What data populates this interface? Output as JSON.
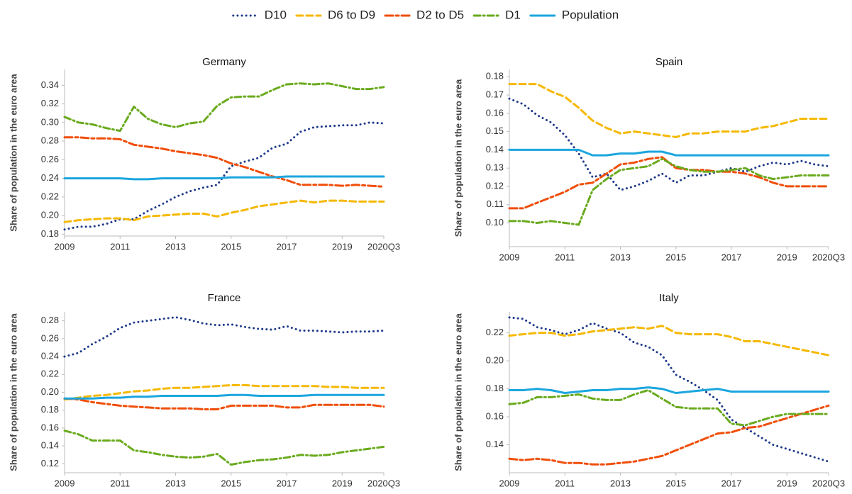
{
  "chart_data": [
    {
      "type": "line",
      "title": "Germany",
      "y_label": "Share of population in the euro area",
      "legend": "top",
      "categories": [
        "2009",
        null,
        null,
        null,
        "2011",
        null,
        null,
        null,
        "2013",
        null,
        null,
        null,
        "2015",
        null,
        null,
        null,
        "2017",
        null,
        null,
        null,
        "2019",
        null,
        null,
        "2020Q3"
      ],
      "ylim": [
        0.178,
        0.357
      ],
      "yticks": [
        0.18,
        {
          "value": 0.2,
          "label": "0.20"
        },
        0.22,
        0.24,
        0.26,
        0.28,
        {
          "value": 0.3,
          "label": "0.30"
        },
        0.32,
        0.34
      ],
      "series": [
        {
          "name": "D10",
          "color": "#1f3a8a",
          "linestyle": "dotted",
          "values": [
            0.185,
            0.188,
            0.188,
            0.191,
            0.196,
            0.196,
            0.205,
            0.212,
            0.22,
            0.226,
            0.23,
            0.233,
            0.253,
            0.258,
            0.262,
            0.273,
            0.277,
            0.29,
            0.295,
            0.296,
            0.297,
            0.297,
            0.3,
            0.299
          ]
        },
        {
          "name": "D6 to D9",
          "color": "#f5b800",
          "linestyle": "dashed",
          "values": [
            0.193,
            0.195,
            0.196,
            0.197,
            0.197,
            0.195,
            0.199,
            0.2,
            0.201,
            0.202,
            0.202,
            0.199,
            0.203,
            0.206,
            0.21,
            0.212,
            0.214,
            0.216,
            0.214,
            0.216,
            0.216,
            0.215,
            0.215,
            0.215
          ]
        },
        {
          "name": "D2 to D5",
          "color": "#f04e0a",
          "linestyle": "longdash",
          "values": [
            0.284,
            0.284,
            0.283,
            0.283,
            0.282,
            0.276,
            0.274,
            0.272,
            0.269,
            0.267,
            0.265,
            0.262,
            0.256,
            0.252,
            0.247,
            0.242,
            0.238,
            0.233,
            0.233,
            0.233,
            0.232,
            0.233,
            0.232,
            0.231
          ]
        },
        {
          "name": "D1",
          "color": "#6aaa1e",
          "linestyle": "dashdot",
          "values": [
            0.306,
            0.3,
            0.298,
            0.294,
            0.291,
            0.317,
            0.304,
            0.298,
            0.295,
            0.299,
            0.301,
            0.318,
            0.327,
            0.328,
            0.328,
            0.335,
            0.341,
            0.342,
            0.341,
            0.342,
            0.339,
            0.336,
            0.336,
            0.338
          ]
        },
        {
          "name": "Population",
          "color": "#1ba6de",
          "linestyle": "solid",
          "values": [
            0.24,
            0.24,
            0.24,
            0.24,
            0.24,
            0.239,
            0.239,
            0.24,
            0.24,
            0.24,
            0.24,
            0.24,
            0.241,
            0.241,
            0.241,
            0.241,
            0.242,
            0.242,
            0.242,
            0.242,
            0.242,
            0.242,
            0.242,
            0.242
          ]
        }
      ]
    },
    {
      "type": "line",
      "title": "Spain",
      "y_label": "Share of population in the euro area",
      "categories": [
        "2009",
        null,
        null,
        null,
        "2011",
        null,
        null,
        null,
        "2013",
        null,
        null,
        null,
        "2015",
        null,
        null,
        null,
        "2017",
        null,
        null,
        null,
        "2019",
        null,
        null,
        "2020Q3"
      ],
      "ylim": [
        0.087,
        0.184
      ],
      "yticks": [
        {
          "value": 0.1,
          "label": "0.10"
        },
        0.11,
        0.12,
        0.13,
        0.14,
        0.15,
        0.16,
        0.17,
        0.18
      ],
      "series": [
        {
          "name": "D10",
          "color": "#1f3a8a",
          "linestyle": "dotted",
          "values": [
            0.168,
            0.165,
            0.159,
            0.155,
            0.148,
            0.138,
            0.125,
            0.127,
            0.118,
            0.12,
            0.123,
            0.127,
            0.122,
            0.126,
            0.126,
            0.128,
            0.13,
            0.128,
            0.131,
            0.133,
            0.132,
            0.134,
            0.132,
            0.131
          ]
        },
        {
          "name": "D6 to D9",
          "color": "#f5b800",
          "linestyle": "dashed",
          "values": [
            0.176,
            0.176,
            0.176,
            0.172,
            0.169,
            0.163,
            0.156,
            0.152,
            0.149,
            0.15,
            0.149,
            0.148,
            0.147,
            0.149,
            0.149,
            0.15,
            0.15,
            0.15,
            0.152,
            0.153,
            0.155,
            0.157,
            0.157,
            0.157
          ]
        },
        {
          "name": "D2 to D5",
          "color": "#f04e0a",
          "linestyle": "longdash",
          "values": [
            0.108,
            0.108,
            0.111,
            0.114,
            0.117,
            0.121,
            0.122,
            0.127,
            0.132,
            0.133,
            0.135,
            0.136,
            0.13,
            0.129,
            0.129,
            0.128,
            0.128,
            0.127,
            0.125,
            0.122,
            0.12,
            0.12,
            0.12,
            0.12
          ]
        },
        {
          "name": "D1",
          "color": "#6aaa1e",
          "linestyle": "dashdot",
          "values": [
            0.101,
            0.101,
            0.1,
            0.101,
            0.1,
            0.099,
            0.118,
            0.124,
            0.129,
            0.13,
            0.131,
            0.135,
            0.131,
            0.129,
            0.128,
            0.128,
            0.129,
            0.13,
            0.126,
            0.124,
            0.125,
            0.126,
            0.126,
            0.126
          ]
        },
        {
          "name": "Population",
          "color": "#1ba6de",
          "linestyle": "solid",
          "values": [
            0.14,
            0.14,
            0.14,
            0.14,
            0.14,
            0.14,
            0.137,
            0.137,
            0.138,
            0.138,
            0.139,
            0.139,
            0.137,
            0.137,
            0.137,
            0.137,
            0.137,
            0.137,
            0.137,
            0.137,
            0.137,
            0.137,
            0.137,
            0.137
          ]
        }
      ]
    },
    {
      "type": "line",
      "title": "France",
      "y_label": "Share of population in the euro area",
      "categories": [
        "2009",
        null,
        null,
        null,
        "2011",
        null,
        null,
        null,
        "2013",
        null,
        null,
        null,
        "2015",
        null,
        null,
        null,
        "2017",
        null,
        null,
        null,
        "2019",
        null,
        null,
        "2020Q3"
      ],
      "ylim": [
        0.11,
        0.29
      ],
      "yticks": [
        0.12,
        0.14,
        0.16,
        0.18,
        {
          "value": 0.2,
          "label": "0.20"
        },
        0.22,
        0.24,
        0.26,
        0.28
      ],
      "series": [
        {
          "name": "D10",
          "color": "#1f3a8a",
          "linestyle": "dotted",
          "values": [
            0.24,
            0.244,
            0.254,
            0.262,
            0.272,
            0.278,
            0.28,
            0.282,
            0.284,
            0.281,
            0.277,
            0.275,
            0.276,
            0.273,
            0.271,
            0.27,
            0.274,
            0.269,
            0.269,
            0.268,
            0.267,
            0.268,
            0.268,
            0.269
          ]
        },
        {
          "name": "D6 to D9",
          "color": "#f5b800",
          "linestyle": "dashed",
          "values": [
            0.192,
            0.194,
            0.196,
            0.197,
            0.199,
            0.201,
            0.202,
            0.204,
            0.205,
            0.205,
            0.206,
            0.207,
            0.208,
            0.208,
            0.207,
            0.207,
            0.207,
            0.207,
            0.207,
            0.206,
            0.206,
            0.205,
            0.205,
            0.205
          ]
        },
        {
          "name": "D2 to D5",
          "color": "#f04e0a",
          "linestyle": "longdash",
          "values": [
            0.193,
            0.192,
            0.189,
            0.187,
            0.185,
            0.184,
            0.183,
            0.182,
            0.182,
            0.182,
            0.181,
            0.181,
            0.185,
            0.185,
            0.185,
            0.185,
            0.183,
            0.183,
            0.186,
            0.186,
            0.186,
            0.186,
            0.186,
            0.184
          ]
        },
        {
          "name": "D1",
          "color": "#6aaa1e",
          "linestyle": "dashdot",
          "values": [
            0.157,
            0.153,
            0.146,
            0.146,
            0.146,
            0.135,
            0.133,
            0.13,
            0.128,
            0.127,
            0.128,
            0.131,
            0.119,
            0.122,
            0.124,
            0.125,
            0.127,
            0.13,
            0.129,
            0.13,
            0.133,
            0.135,
            0.137,
            0.139
          ]
        },
        {
          "name": "Population",
          "color": "#1ba6de",
          "linestyle": "solid",
          "values": [
            0.193,
            0.193,
            0.193,
            0.194,
            0.194,
            0.195,
            0.195,
            0.196,
            0.196,
            0.196,
            0.196,
            0.196,
            0.197,
            0.197,
            0.196,
            0.196,
            0.196,
            0.196,
            0.197,
            0.197,
            0.197,
            0.197,
            0.197,
            0.197
          ]
        }
      ]
    },
    {
      "type": "line",
      "title": "Italy",
      "y_label": "Share of population in the euro area",
      "categories": [
        "2009",
        null,
        null,
        null,
        "2011",
        null,
        null,
        null,
        "2013",
        null,
        null,
        null,
        "2015",
        null,
        null,
        null,
        "2017",
        null,
        null,
        null,
        "2019",
        null,
        null,
        "2020Q3"
      ],
      "ylim": [
        0.12,
        0.235
      ],
      "yticks": [
        0.14,
        0.16,
        0.18,
        {
          "value": 0.2,
          "label": "0.20"
        },
        0.22
      ],
      "series": [
        {
          "name": "D10",
          "color": "#1f3a8a",
          "linestyle": "dotted",
          "values": [
            0.231,
            0.23,
            0.224,
            0.222,
            0.219,
            0.222,
            0.227,
            0.223,
            0.22,
            0.213,
            0.21,
            0.204,
            0.19,
            0.185,
            0.179,
            0.172,
            0.158,
            0.152,
            0.146,
            0.14,
            0.137,
            0.134,
            0.131,
            0.128
          ]
        },
        {
          "name": "D6 to D9",
          "color": "#f5b800",
          "linestyle": "dashed",
          "values": [
            0.218,
            0.219,
            0.22,
            0.22,
            0.218,
            0.219,
            0.221,
            0.222,
            0.223,
            0.224,
            0.223,
            0.225,
            0.22,
            0.219,
            0.219,
            0.219,
            0.217,
            0.214,
            0.214,
            0.212,
            0.21,
            0.208,
            0.206,
            0.204
          ]
        },
        {
          "name": "D2 to D5",
          "color": "#f04e0a",
          "linestyle": "longdash",
          "values": [
            0.13,
            0.129,
            0.13,
            0.129,
            0.127,
            0.127,
            0.126,
            0.126,
            0.127,
            0.128,
            0.13,
            0.132,
            0.136,
            0.14,
            0.144,
            0.148,
            0.149,
            0.152,
            0.153,
            0.156,
            0.159,
            0.162,
            0.165,
            0.168
          ]
        },
        {
          "name": "D1",
          "color": "#6aaa1e",
          "linestyle": "dashdot",
          "values": [
            0.169,
            0.17,
            0.174,
            0.174,
            0.175,
            0.176,
            0.173,
            0.172,
            0.172,
            0.176,
            0.179,
            0.173,
            0.167,
            0.166,
            0.166,
            0.166,
            0.155,
            0.154,
            0.157,
            0.16,
            0.162,
            0.162,
            0.162,
            0.162
          ]
        },
        {
          "name": "Population",
          "color": "#1ba6de",
          "linestyle": "solid",
          "values": [
            0.179,
            0.179,
            0.18,
            0.179,
            0.177,
            0.178,
            0.179,
            0.179,
            0.18,
            0.18,
            0.181,
            0.18,
            0.177,
            0.178,
            0.179,
            0.18,
            0.178,
            0.178,
            0.178,
            0.178,
            0.178,
            0.178,
            0.178,
            0.178
          ]
        }
      ]
    }
  ]
}
